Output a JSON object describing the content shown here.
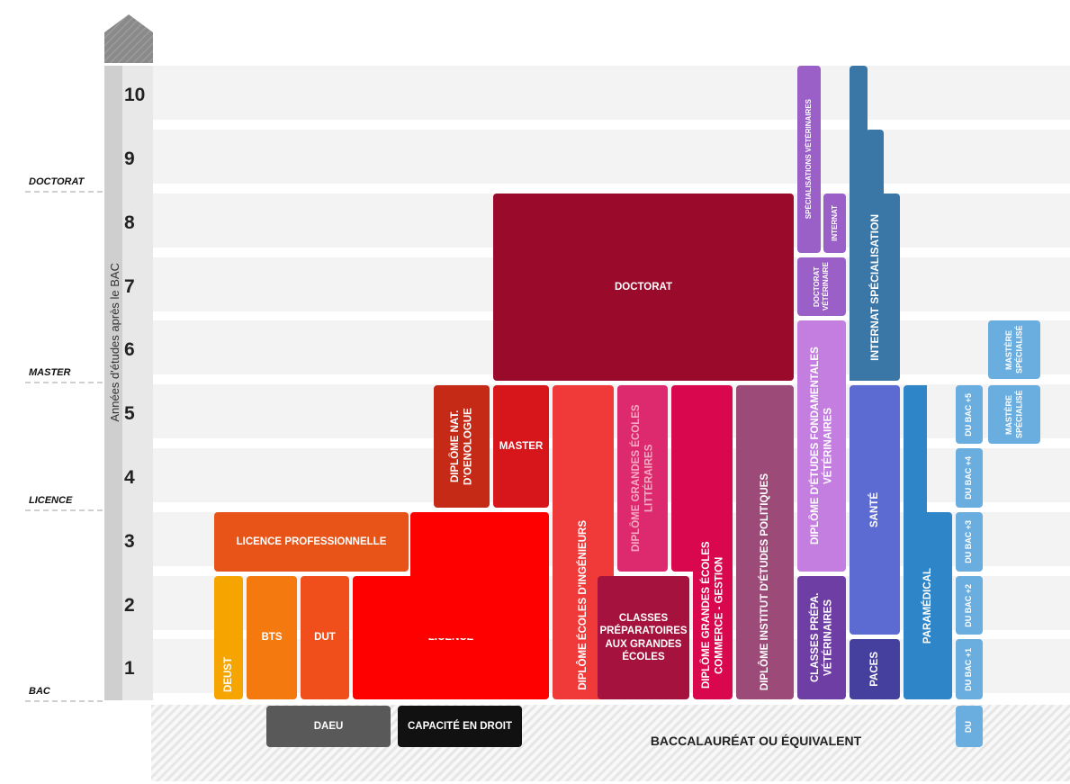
{
  "axis": {
    "title": "Années d'études après le BAC",
    "years": [
      "10",
      "9",
      "8",
      "7",
      "6",
      "5",
      "4",
      "3",
      "2",
      "1"
    ]
  },
  "levels": {
    "doctorat": "DOCTORAT",
    "master": "MASTER",
    "licence": "LICENCE",
    "bac": "BAC"
  },
  "base": {
    "bac_equivalent": "BACCALAURÉAT OU ÉQUIVALENT",
    "daeu": "DAEU",
    "capacite": "CAPACITÉ EN DROIT"
  },
  "programs": {
    "deust": "DEUST",
    "bts": "BTS",
    "dut": "DUT",
    "licence": "LICENCE",
    "licence_pro": "LICENCE PROFESSIONNELLE",
    "oenologue": "DIPLÔME NAT. D'OENOLOGUE",
    "master": "MASTER",
    "doctorat": "DOCTORAT",
    "ingenieurs": "DIPLÔME ÉCOLES D'INGÉNIEURS",
    "litteraires": "DIPLÔME GRANDES ÉCOLES LITTÉRAIRES",
    "cpge": "CLASSES PRÉPARATOIRES AUX GRANDES ÉCOLES",
    "commerce": "DIPLÔME GRANDES ÉCOLES COMMERCE - GESTION",
    "iep": "DIPLÔME INSTITUT D'ÉTUDES POLITIQUES",
    "prepa_veto": "CLASSES PRÉPA. VÉTÉRINAIRES",
    "defv": "DIPLÔME D'ÉTUDES FONDAMENTALES VÉTÉRINAIRES",
    "doctorat_veto": "DOCTORAT VÉTÉRINAIRE",
    "specialisations_veto": "SPÉCIALISATIONS VÉTÉRINAIRES",
    "internat": "INTERNAT",
    "paces": "PACES",
    "sante": "SANTÉ",
    "internat_specialisation": "INTERNAT SPÉCIALISATION",
    "paramedical": "PARAMÉDICAL",
    "du": "DU",
    "du_bac1": "DU BAC +1",
    "du_bac2": "DU BAC +2",
    "du_bac3": "DU BAC +3",
    "du_bac4": "DU BAC +4",
    "du_bac5": "DU BAC +5",
    "mastere1": "MASTÈRE SPÉCIALISÉ",
    "mastere2": "MASTÈRE SPÉCIALISÉ"
  }
}
